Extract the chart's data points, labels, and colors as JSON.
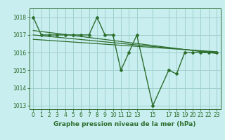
{
  "title": "Graphe pression niveau de la mer (hPa)",
  "bg_color": "#c8eef0",
  "plot_bg_color": "#c8eef0",
  "grid_color": "#a0d0cc",
  "line_color": "#2d6e2d",
  "x_values": [
    0,
    1,
    2,
    3,
    4,
    5,
    6,
    7,
    8,
    9,
    10,
    11,
    12,
    13,
    15,
    17,
    18,
    19,
    20,
    21,
    22,
    23
  ],
  "y_values": [
    1018,
    1017,
    1017,
    1017,
    1017,
    1017,
    1017,
    1017,
    1018,
    1017,
    1017,
    1015,
    1016,
    1017,
    1013,
    1015,
    1014.8,
    1016,
    1016,
    1016,
    1016,
    1016
  ],
  "trend1_x": [
    0,
    23
  ],
  "trend1_y": [
    1017.0,
    1016.0
  ],
  "trend2_x": [
    0,
    23
  ],
  "trend2_y": [
    1017.25,
    1015.95
  ],
  "trend3_x": [
    0,
    23
  ],
  "trend3_y": [
    1016.75,
    1016.05
  ],
  "ylim": [
    1012.8,
    1018.5
  ],
  "yticks": [
    1013,
    1014,
    1015,
    1016,
    1017,
    1018
  ],
  "xticks": [
    0,
    1,
    2,
    3,
    4,
    5,
    6,
    7,
    8,
    9,
    10,
    11,
    12,
    13,
    15,
    17,
    18,
    19,
    20,
    21,
    22,
    23
  ],
  "xlim": [
    -0.5,
    23.5
  ],
  "tick_fontsize": 5.5,
  "label_fontsize": 6.5
}
